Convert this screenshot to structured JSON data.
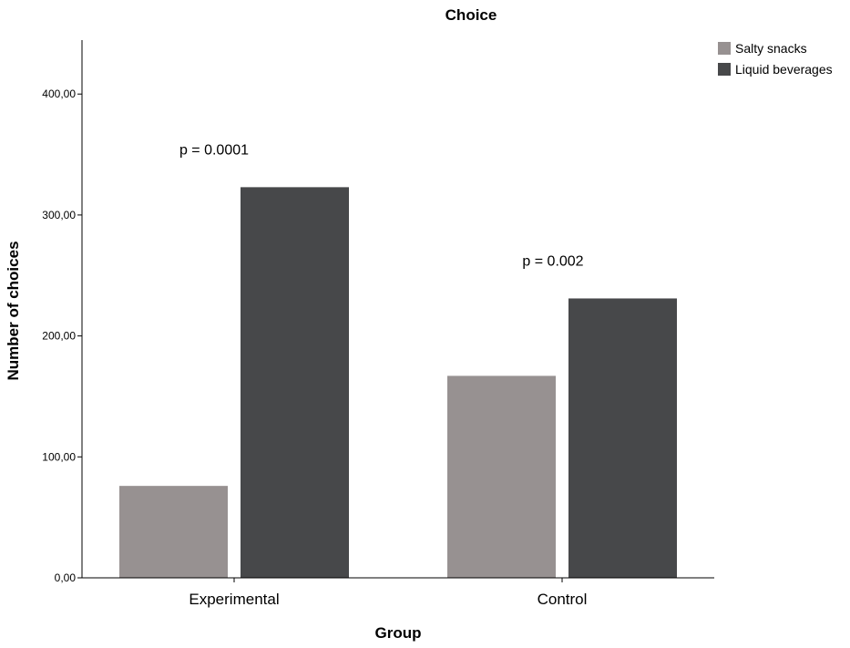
{
  "chart_data": {
    "type": "bar",
    "title": "Choice",
    "xlabel": "Group",
    "ylabel": "Number of choices",
    "categories": [
      "Experimental",
      "Control"
    ],
    "series": [
      {
        "name": "Salty snacks",
        "values": [
          76,
          167
        ],
        "color": "#979191"
      },
      {
        "name": "Liquid beverages",
        "values": [
          323,
          231
        ],
        "color": "#47484a"
      }
    ],
    "ylim": [
      0,
      445
    ],
    "yticks": [
      0,
      100,
      200,
      300,
      400
    ],
    "ytick_labels": [
      "0,00",
      "100,00",
      "200,00",
      "300,00",
      "400,00"
    ],
    "annotations": [
      {
        "category": "Experimental",
        "text": "p = 0.0001"
      },
      {
        "category": "Control",
        "text": "p = 0.002"
      }
    ],
    "grid": false,
    "legend_position": "top-right"
  }
}
